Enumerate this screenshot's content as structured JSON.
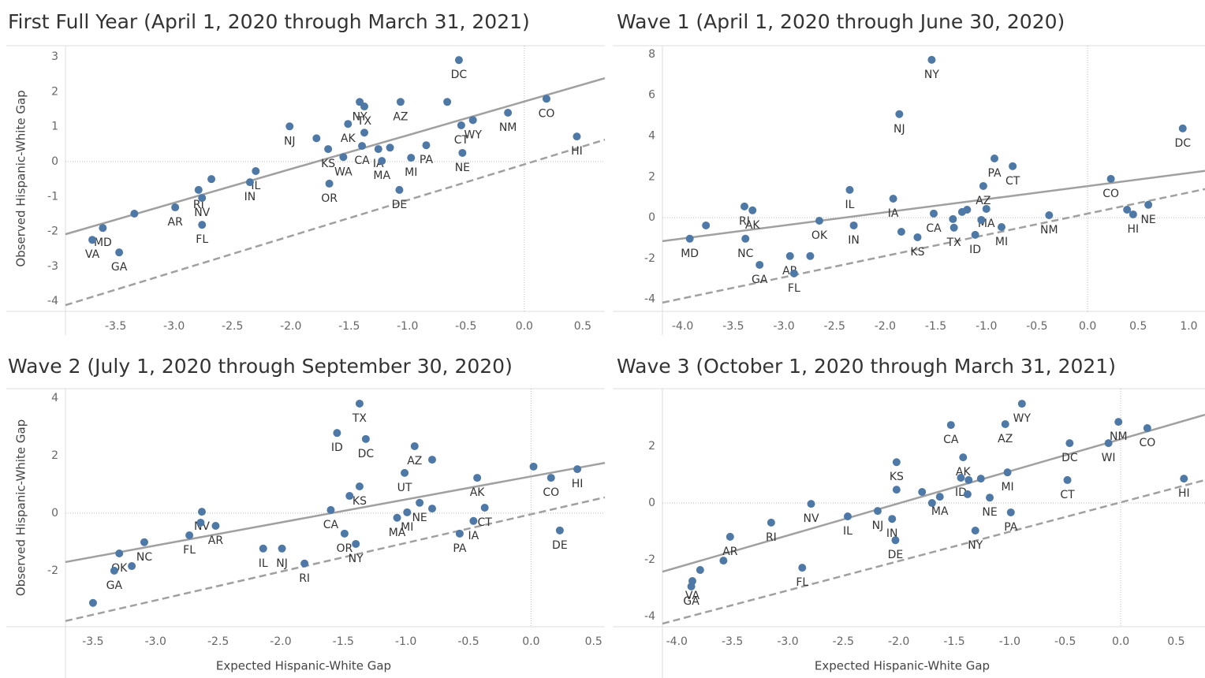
{
  "chart_data": [
    {
      "type": "scatter",
      "title": "First Full Year (April 1, 2020 through March 31, 2021)",
      "ylabel": "Observed Hispanic-White Gap",
      "color": "#4e79a7",
      "xlim": [
        -3.93,
        0.69
      ],
      "ylim": [
        -4.29,
        3.32
      ],
      "xticks": [
        -3.5,
        {
          "value": -3,
          "label": "-3.0"
        },
        -2.5,
        {
          "value": -2,
          "label": "-2.0"
        },
        -1.5,
        {
          "value": -1,
          "label": "-1.0"
        },
        -0.5,
        {
          "value": 0,
          "label": "0.0"
        },
        0.5
      ],
      "yticks": [
        -4,
        -3,
        -2,
        -1,
        0,
        1,
        2,
        3
      ],
      "fit_lines": [
        {
          "style": "solid",
          "x": [
            -3.93,
            0.69
          ],
          "y": [
            -2.08,
            2.39
          ]
        },
        {
          "style": "dashed",
          "x": [
            -3.93,
            0.69
          ],
          "y": [
            -4.11,
            0.63
          ]
        }
      ],
      "labels": [
        "DC",
        "NY",
        null,
        "TX",
        "AZ",
        null,
        "CO",
        "NM",
        "WY",
        "CT",
        "NJ",
        "AK",
        "CA",
        "HI",
        null,
        "KS",
        "IA",
        null,
        "PA",
        "NE",
        "WA",
        "MA",
        "MI",
        "IL",
        "IN",
        "OR",
        "DE",
        null,
        "RI",
        "NV",
        "AR",
        "FL",
        null,
        "MD",
        "VA",
        "GA"
      ],
      "x": [
        -0.56,
        -1.41,
        -1.37,
        -1.37,
        -1.06,
        -0.66,
        0.19,
        -0.14,
        -0.44,
        -0.54,
        -2.01,
        -1.51,
        -1.39,
        0.45,
        -1.78,
        -1.68,
        -1.25,
        -1.15,
        -0.84,
        -0.53,
        -1.55,
        -1.22,
        -0.97,
        -2.3,
        -2.35,
        -1.67,
        -1.07,
        -2.68,
        -2.79,
        -2.76,
        -2.99,
        -2.76,
        -3.34,
        -3.61,
        -3.7,
        -3.47
      ],
      "y": [
        2.91,
        1.71,
        0.83,
        1.58,
        1.71,
        1.71,
        1.8,
        1.4,
        1.19,
        1.04,
        1.01,
        1.08,
        0.45,
        0.72,
        0.67,
        0.36,
        0.36,
        0.4,
        0.47,
        0.25,
        0.13,
        0.02,
        0.11,
        -0.27,
        -0.59,
        -0.63,
        -0.81,
        -0.5,
        -0.81,
        -1.04,
        -1.31,
        -1.81,
        -1.49,
        -1.9,
        -2.24,
        -2.6
      ]
    },
    {
      "type": "scatter",
      "title": "Wave 1 (April 1, 2020 through June 30, 2020)",
      "color": "#4e79a7",
      "xlim": [
        -4.2,
        1.16
      ],
      "ylim": [
        -4.59,
        8.42
      ],
      "xticks": [
        {
          "value": -4,
          "label": "-4.0"
        },
        -3.5,
        {
          "value": -3,
          "label": "-3.0"
        },
        -2.5,
        {
          "value": -2,
          "label": "-2.0"
        },
        -1.5,
        {
          "value": -1,
          "label": "-1.0"
        },
        -0.5,
        {
          "value": 0,
          "label": "0.0"
        },
        0.5,
        {
          "value": 1,
          "label": "1.0"
        }
      ],
      "yticks": [
        -4,
        -2,
        0,
        2,
        4,
        6,
        8
      ],
      "fit_lines": [
        {
          "style": "solid",
          "x": [
            -4.2,
            1.16
          ],
          "y": [
            -1.15,
            2.29
          ]
        },
        {
          "style": "dashed",
          "x": [
            -4.2,
            1.16
          ],
          "y": [
            -4.16,
            1.4
          ]
        }
      ],
      "labels": [
        "NY",
        "NJ",
        "DC",
        "PA",
        "CT",
        "CO",
        "IL",
        "AZ",
        "IA",
        "RI",
        "AK",
        "NE",
        "MA",
        null,
        null,
        "CA",
        null,
        "HI",
        "NM",
        null,
        "OK",
        null,
        "TX",
        null,
        "IN",
        "MI",
        null,
        "ID",
        "KS",
        "MD",
        "NC",
        "AR",
        null,
        "GA",
        "FL"
      ],
      "x": [
        -1.54,
        -1.86,
        0.94,
        -0.92,
        -0.74,
        0.23,
        -2.35,
        -1.03,
        -1.92,
        -3.39,
        -3.31,
        0.6,
        -1.0,
        -1.19,
        -1.24,
        -1.52,
        0.39,
        0.45,
        -0.38,
        -1.05,
        -2.65,
        -1.33,
        -1.32,
        -3.77,
        -2.31,
        -0.85,
        -1.84,
        -1.11,
        -1.68,
        -3.93,
        -3.38,
        -2.94,
        -2.74,
        -3.24,
        -2.9
      ],
      "y": [
        7.73,
        5.07,
        4.37,
        2.9,
        2.52,
        1.9,
        1.36,
        1.55,
        0.93,
        0.55,
        0.36,
        0.63,
        0.43,
        0.39,
        0.28,
        0.2,
        0.39,
        0.16,
        0.12,
        -0.11,
        -0.15,
        -0.07,
        -0.49,
        -0.38,
        -0.38,
        -0.46,
        -0.69,
        -0.84,
        -0.96,
        -1.03,
        -1.03,
        -1.88,
        -1.88,
        -2.31,
        -2.73
      ]
    },
    {
      "type": "scatter",
      "title": "Wave 2 (July 1, 2020 through September 30, 2020)",
      "xlabel": "Expected Hispanic-White Gap",
      "ylabel": "Observed Hispanic-White Gap",
      "color": "#4e79a7",
      "xlim": [
        -3.72,
        0.59
      ],
      "ylim": [
        -3.95,
        4.33
      ],
      "xticks": [
        -3.5,
        {
          "value": -3,
          "label": "-3.0"
        },
        -2.5,
        {
          "value": -2,
          "label": "-2.0"
        },
        -1.5,
        {
          "value": -1,
          "label": "-1.0"
        },
        -0.5,
        {
          "value": 0,
          "label": "0.0"
        },
        0.5
      ],
      "yticks": [
        -2,
        0,
        2,
        4
      ],
      "fit_lines": [
        {
          "style": "solid",
          "x": [
            -3.72,
            0.59
          ],
          "y": [
            -1.7,
            1.75
          ]
        },
        {
          "style": "dashed",
          "x": [
            -3.72,
            0.59
          ],
          "y": [
            -3.75,
            0.55
          ]
        }
      ],
      "labels": [
        "TX",
        "ID",
        "DC",
        "AZ",
        null,
        null,
        "CO",
        "HI",
        "UT",
        "AK",
        "KS",
        null,
        "NE",
        null,
        "MI",
        "MA",
        "CA",
        "CT",
        "IA",
        "DE",
        "NV",
        null,
        "AR",
        "OR",
        "FL",
        "NC",
        "PA",
        "NY",
        "IL",
        "NJ",
        "OK",
        "RI",
        null,
        "GA",
        null
      ],
      "x": [
        -1.37,
        -1.55,
        -1.32,
        -0.93,
        -0.79,
        0.02,
        0.16,
        0.37,
        -1.01,
        -0.43,
        -1.37,
        -1.45,
        -0.89,
        -0.79,
        -0.99,
        -1.07,
        -1.6,
        -0.37,
        -0.46,
        0.23,
        -2.63,
        -2.64,
        -2.52,
        -1.49,
        -2.73,
        -3.09,
        -0.57,
        -1.4,
        -2.14,
        -1.99,
        -3.29,
        -1.81,
        -3.19,
        -3.33,
        -3.5
      ],
      "y": [
        3.81,
        2.79,
        2.58,
        2.33,
        1.86,
        1.62,
        1.23,
        1.53,
        1.4,
        1.23,
        0.93,
        0.6,
        0.36,
        0.16,
        0.03,
        -0.16,
        0.11,
        0.19,
        -0.27,
        -0.6,
        0.05,
        -0.33,
        -0.44,
        -0.71,
        -0.77,
        -1.01,
        -0.71,
        -1.07,
        -1.23,
        -1.23,
        -1.4,
        -1.75,
        -1.84,
        -2.0,
        -3.12
      ]
    },
    {
      "type": "scatter",
      "title": "Wave 3 (October 1, 2020 through March 31, 2021)",
      "xlabel": "Expected Hispanic-White Gap",
      "color": "#4e79a7",
      "xlim": [
        -4.13,
        0.76
      ],
      "ylim": [
        -4.36,
        4.03
      ],
      "xticks": [
        {
          "value": -4,
          "label": "-4.0"
        },
        -3.5,
        {
          "value": -3,
          "label": "-3.0"
        },
        -2.5,
        {
          "value": -2,
          "label": "-2.0"
        },
        -1.5,
        {
          "value": -1,
          "label": "-1.0"
        },
        -0.5,
        {
          "value": 0,
          "label": "0.0"
        },
        0.5
      ],
      "yticks": [
        -4,
        -2,
        0,
        2
      ],
      "fit_lines": [
        {
          "style": "solid",
          "x": [
            -4.13,
            0.76
          ],
          "y": [
            -2.42,
            3.11
          ]
        },
        {
          "style": "dashed",
          "x": [
            -4.13,
            0.76
          ],
          "y": [
            -4.25,
            0.81
          ]
        }
      ],
      "labels": [
        "WY",
        "AZ",
        "CA",
        "NM",
        "CO",
        "DC",
        "WI",
        "AK",
        "KS",
        "MI",
        "HI",
        "CT",
        "ID",
        null,
        null,
        null,
        null,
        "MA",
        null,
        null,
        "NE",
        "NV",
        "NJ",
        "IN",
        "IL",
        "PA",
        "NY",
        "DE",
        "RI",
        "AR",
        null,
        "FL",
        null,
        "VA",
        "GA"
      ],
      "x": [
        -0.89,
        -1.04,
        -1.53,
        -0.02,
        0.24,
        -0.46,
        -0.11,
        -1.42,
        -2.02,
        -1.02,
        0.57,
        -0.48,
        -1.44,
        -1.37,
        -1.26,
        -2.02,
        -1.79,
        -1.63,
        -1.7,
        -1.38,
        -1.18,
        -2.79,
        -2.19,
        -2.06,
        -2.46,
        -0.99,
        -1.31,
        -2.03,
        -3.15,
        -3.52,
        -3.58,
        -2.87,
        -3.79,
        -3.86,
        -3.87
      ],
      "y": [
        3.5,
        2.78,
        2.75,
        2.86,
        2.64,
        2.11,
        2.11,
        1.61,
        1.44,
        1.08,
        0.86,
        0.81,
        0.89,
        0.81,
        0.86,
        0.47,
        0.39,
        0.22,
        0.0,
        0.31,
        0.19,
        -0.03,
        -0.28,
        -0.56,
        -0.47,
        -0.33,
        -0.97,
        -1.31,
        -0.69,
        -1.19,
        -2.03,
        -2.28,
        -2.36,
        -2.75,
        -2.94
      ]
    }
  ]
}
